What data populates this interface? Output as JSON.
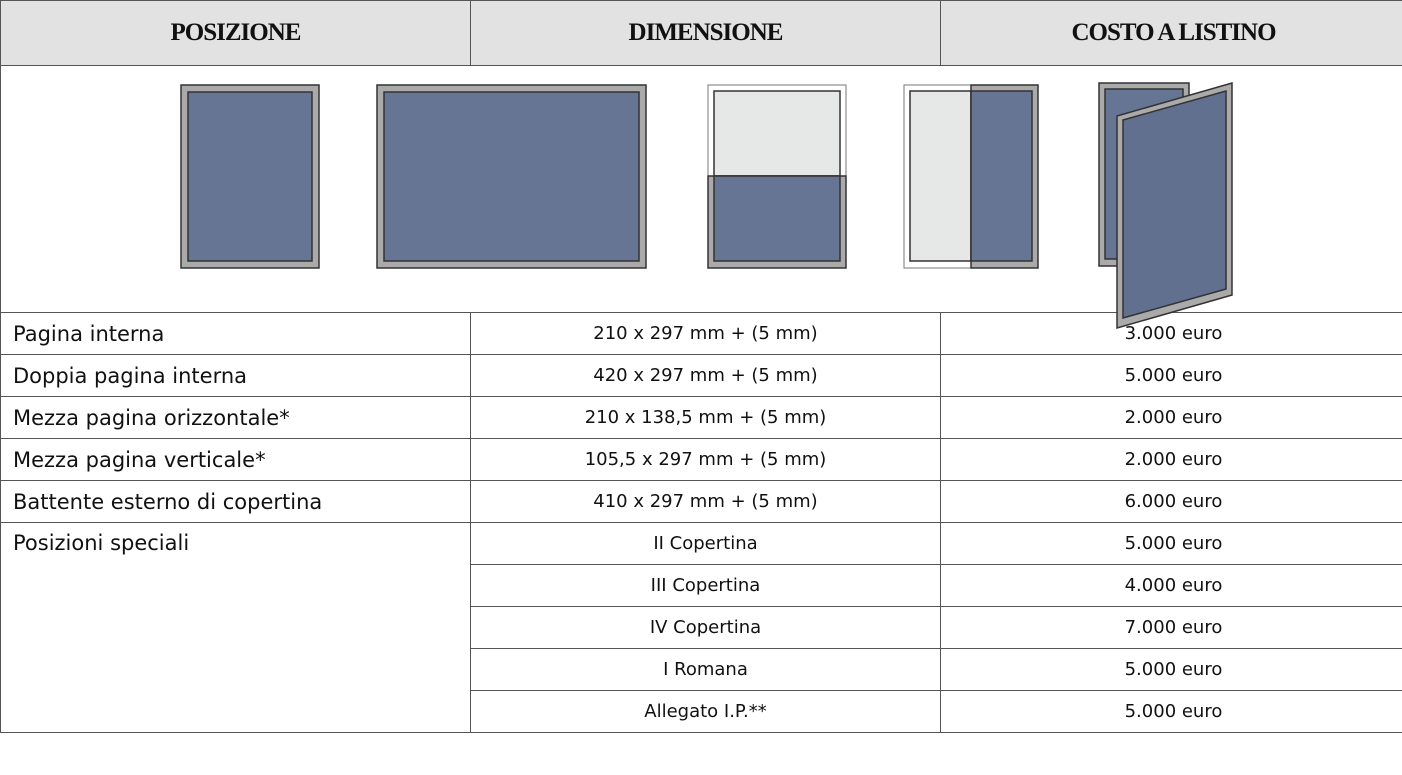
{
  "header": {
    "columns": [
      "POSIZIONE",
      "DIMENSIONE",
      "COSTO A LISTINO"
    ]
  },
  "table": {
    "rows": [
      [
        "Pagina interna",
        "210 x 297 mm + (5 mm)",
        "3.000 euro"
      ],
      [
        "Doppia pagina interna",
        "420 x 297 mm + (5 mm)",
        "5.000 euro"
      ],
      [
        "Mezza pagina orizzontale*",
        "210 x 138,5 mm + (5 mm)",
        "2.000 euro"
      ],
      [
        "Mezza pagina verticale*",
        "105,5 x 297 mm + (5 mm)",
        "2.000 euro"
      ],
      [
        "Battente esterno di copertina",
        "410 x 297 mm + (5 mm)",
        "6.000 euro"
      ]
    ]
  },
  "special": {
    "label": "Posizioni speciali",
    "rows": [
      [
        "II Copertina",
        "5.000 euro"
      ],
      [
        "III Copertina",
        "4.000 euro"
      ],
      [
        "IV Copertina",
        "7.000 euro"
      ],
      [
        "I Romana",
        "5.000 euro"
      ],
      [
        "Allegato I.P.**",
        "5.000 euro"
      ]
    ]
  }
}
